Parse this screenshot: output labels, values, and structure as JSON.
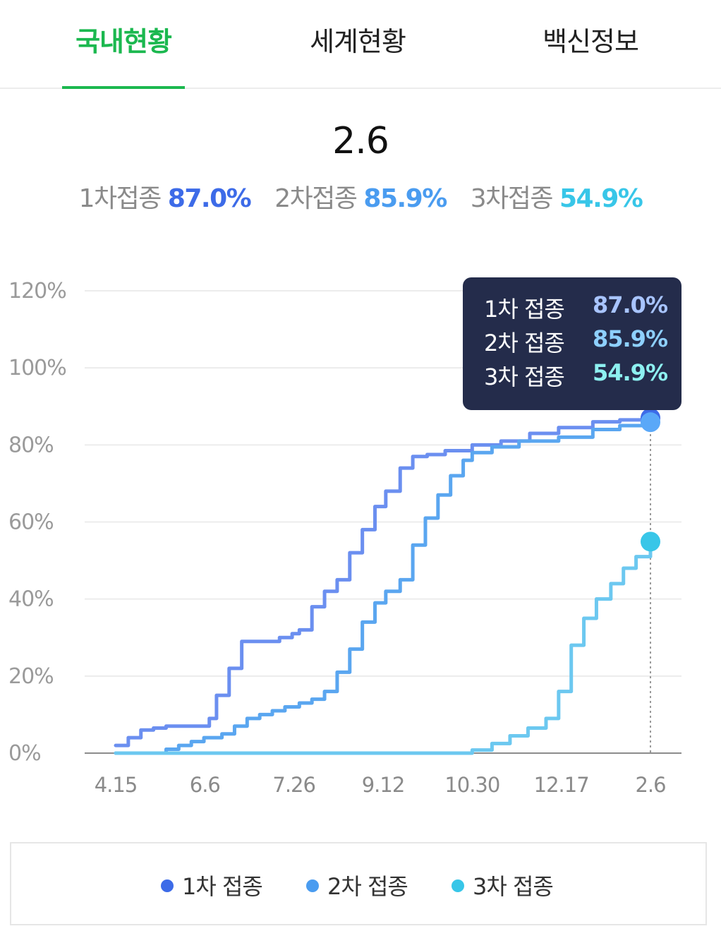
{
  "tabs": [
    {
      "label": "국내현황",
      "active": true
    },
    {
      "label": "세계현황",
      "active": false
    },
    {
      "label": "백신정보",
      "active": false
    }
  ],
  "summary": {
    "date": "2.6",
    "items": [
      {
        "label": "1차접종",
        "value": "87.0%",
        "color": "#3d6be8"
      },
      {
        "label": "2차접종",
        "value": "85.9%",
        "color": "#4a9cf0"
      },
      {
        "label": "3차접종",
        "value": "54.9%",
        "color": "#38c6e8"
      }
    ]
  },
  "tooltip": {
    "rows": [
      {
        "label": "1차 접종",
        "value": "87.0%",
        "color": "#a8c4ff"
      },
      {
        "label": "2차 접종",
        "value": "85.9%",
        "color": "#8ed0ff"
      },
      {
        "label": "3차 접종",
        "value": "54.9%",
        "color": "#8df0f0"
      }
    ]
  },
  "legend": [
    {
      "label": "1차 접종",
      "color": "#3d6be8"
    },
    {
      "label": "2차 접종",
      "color": "#4a9cf0"
    },
    {
      "label": "3차 접종",
      "color": "#38c6e8"
    }
  ],
  "chart_data": {
    "type": "line",
    "title": "",
    "xlabel": "",
    "ylabel": "",
    "x_ticks": [
      "4.15",
      "6.6",
      "7.26",
      "9.12",
      "10.30",
      "12.17",
      "2.6"
    ],
    "y_ticks": [
      "0%",
      "20%",
      "40%",
      "60%",
      "80%",
      "100%",
      "120%"
    ],
    "ylim": [
      0,
      120
    ],
    "grid": true,
    "legend_position": "bottom",
    "highlight_x": "2.6",
    "series": [
      {
        "name": "1차 접종",
        "color": "#6b8ff0",
        "x": [
          "2021-04-15",
          "2021-04-22",
          "2021-04-29",
          "2021-05-06",
          "2021-05-13",
          "2021-05-20",
          "2021-05-27",
          "2021-06-03",
          "2021-06-06",
          "2021-06-10",
          "2021-06-17",
          "2021-06-24",
          "2021-07-01",
          "2021-07-08",
          "2021-07-15",
          "2021-07-22",
          "2021-07-26",
          "2021-08-02",
          "2021-08-09",
          "2021-08-16",
          "2021-08-23",
          "2021-08-30",
          "2021-09-06",
          "2021-09-12",
          "2021-09-20",
          "2021-09-27",
          "2021-10-05",
          "2021-10-15",
          "2021-10-30",
          "2021-11-15",
          "2021-12-01",
          "2021-12-17",
          "2022-01-05",
          "2022-01-20",
          "2022-02-06"
        ],
        "values": [
          2,
          4,
          6,
          6.5,
          7,
          7,
          7,
          7,
          9,
          15,
          22,
          29,
          29,
          29,
          30,
          31,
          32,
          38,
          42,
          45,
          52,
          58,
          64,
          68,
          74,
          77,
          77.5,
          78.5,
          80,
          81,
          83,
          84.5,
          86,
          86.5,
          87.0
        ]
      },
      {
        "name": "2차 접종",
        "color": "#5aa6f0",
        "x": [
          "2021-04-15",
          "2021-04-22",
          "2021-04-29",
          "2021-05-06",
          "2021-05-13",
          "2021-05-20",
          "2021-05-27",
          "2021-06-03",
          "2021-06-06",
          "2021-06-13",
          "2021-06-20",
          "2021-06-27",
          "2021-07-04",
          "2021-07-11",
          "2021-07-18",
          "2021-07-26",
          "2021-08-02",
          "2021-08-09",
          "2021-08-16",
          "2021-08-23",
          "2021-08-30",
          "2021-09-06",
          "2021-09-12",
          "2021-09-20",
          "2021-09-27",
          "2021-10-04",
          "2021-10-11",
          "2021-10-18",
          "2021-10-25",
          "2021-10-30",
          "2021-11-10",
          "2021-11-25",
          "2021-12-17",
          "2022-01-05",
          "2022-01-20",
          "2022-02-06"
        ],
        "values": [
          0,
          0,
          0,
          0,
          1,
          2,
          3,
          4,
          4,
          5,
          7,
          9,
          10,
          11,
          12,
          13,
          14,
          16,
          21,
          27,
          34,
          39,
          42,
          45,
          54,
          61,
          67,
          72,
          76,
          78,
          79.5,
          81,
          82,
          84,
          85,
          85.9
        ]
      },
      {
        "name": "3차 접종",
        "color": "#6cc8f0",
        "x": [
          "2021-04-15",
          "2021-05-01",
          "2021-06-01",
          "2021-07-01",
          "2021-08-01",
          "2021-09-01",
          "2021-10-01",
          "2021-10-20",
          "2021-10-30",
          "2021-11-10",
          "2021-11-20",
          "2021-11-30",
          "2021-12-10",
          "2021-12-17",
          "2021-12-24",
          "2021-12-31",
          "2022-01-07",
          "2022-01-15",
          "2022-01-22",
          "2022-01-29",
          "2022-02-06"
        ],
        "values": [
          0,
          0,
          0,
          0,
          0,
          0,
          0,
          0,
          0.8,
          2.5,
          4.5,
          6.5,
          9,
          16,
          28,
          35,
          40,
          44,
          48,
          51,
          54.9
        ]
      }
    ],
    "endpoints": [
      {
        "series": "1차 접종",
        "value": 87.0,
        "color": "#3d6be8"
      },
      {
        "series": "2차 접종",
        "value": 85.9,
        "color": "#5aa8f8"
      },
      {
        "series": "3차 접종",
        "value": 54.9,
        "color": "#38c6e8"
      }
    ]
  }
}
